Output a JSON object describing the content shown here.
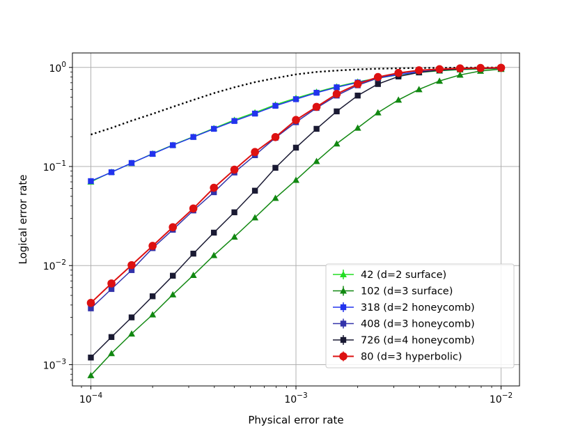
{
  "chart_data": {
    "type": "line",
    "xscale": "log",
    "yscale": "log",
    "xlim": [
      8.13e-05,
      0.0123
    ],
    "ylim": [
      0.00061,
      1.4
    ],
    "xlabel": "Physical error rate",
    "ylabel": "Logical error rate",
    "grid": true,
    "legend_position": "lower-right",
    "x_ticks": [
      {
        "value": 0.0001,
        "base": "10",
        "exp": "−4"
      },
      {
        "value": 0.001,
        "base": "10",
        "exp": "−3"
      },
      {
        "value": 0.01,
        "base": "10",
        "exp": "−2"
      }
    ],
    "y_ticks": [
      {
        "value": 0.001,
        "base": "10",
        "exp": "−3"
      },
      {
        "value": 0.01,
        "base": "10",
        "exp": "−2"
      },
      {
        "value": 0.1,
        "base": "10",
        "exp": "−1"
      },
      {
        "value": 1,
        "base": "10",
        "exp": "0"
      }
    ],
    "x": [
      0.0001,
      0.000126,
      0.000158,
      0.0002,
      0.000251,
      0.000316,
      0.000398,
      0.000501,
      0.000631,
      0.000794,
      0.001,
      0.00126,
      0.00158,
      0.002,
      0.00251,
      0.00316,
      0.00398,
      0.00501,
      0.00631,
      0.00794,
      0.01
    ],
    "reference_curve": {
      "name": "dotted reference",
      "color": "#000000",
      "style": "dotted",
      "values": [
        0.21,
        0.245,
        0.29,
        0.34,
        0.4,
        0.47,
        0.55,
        0.63,
        0.71,
        0.78,
        0.85,
        0.9,
        0.93,
        0.955,
        0.97,
        0.98,
        0.987,
        0.991,
        0.994,
        0.996,
        0.997
      ]
    },
    "series": [
      {
        "name": "42 (d=2 surface)",
        "color": "#22dd22",
        "marker": "triangle",
        "values": [
          0.07,
          0.088,
          0.108,
          0.135,
          0.165,
          0.2,
          0.243,
          0.295,
          0.35,
          0.42,
          0.49,
          0.565,
          0.64,
          0.715,
          0.78,
          0.84,
          0.89,
          0.925,
          0.95,
          0.965,
          0.975
        ]
      },
      {
        "name": "102 (d=3 surface)",
        "color": "#118811",
        "marker": "triangle",
        "values": [
          0.00078,
          0.0013,
          0.00205,
          0.0032,
          0.0051,
          0.008,
          0.0127,
          0.0195,
          0.0305,
          0.048,
          0.073,
          0.113,
          0.17,
          0.245,
          0.35,
          0.47,
          0.6,
          0.73,
          0.84,
          0.92,
          0.96
        ]
      },
      {
        "name": "318 (d=2 honeycomb)",
        "color": "#2233ee",
        "marker": "square",
        "values": [
          0.0712,
          0.0875,
          0.1085,
          0.134,
          0.164,
          0.1985,
          0.24,
          0.288,
          0.342,
          0.41,
          0.478,
          0.555,
          0.63,
          0.705,
          0.78,
          0.845,
          0.9,
          0.935,
          0.96,
          0.975,
          0.983
        ]
      },
      {
        "name": "408 (d=3 honeycomb)",
        "color": "#3333aa",
        "marker": "square",
        "values": [
          0.0037,
          0.0058,
          0.009,
          0.015,
          0.023,
          0.036,
          0.055,
          0.087,
          0.13,
          0.195,
          0.28,
          0.39,
          0.52,
          0.66,
          0.78,
          0.87,
          0.925,
          0.955,
          0.972,
          0.982,
          0.988
        ]
      },
      {
        "name": "726 (d=4 honeycomb)",
        "color": "#1a1a33",
        "marker": "square",
        "values": [
          0.00118,
          0.0019,
          0.003,
          0.0049,
          0.0079,
          0.0132,
          0.0215,
          0.0345,
          0.057,
          0.097,
          0.155,
          0.24,
          0.36,
          0.52,
          0.68,
          0.81,
          0.89,
          0.935,
          0.96,
          0.975,
          0.985
        ]
      },
      {
        "name": "80 (d=3 hyperbolic)",
        "color": "#dd1111",
        "marker": "circle",
        "values": [
          0.0042,
          0.0066,
          0.0101,
          0.0158,
          0.0244,
          0.0377,
          0.061,
          0.093,
          0.14,
          0.198,
          0.295,
          0.4,
          0.54,
          0.68,
          0.8,
          0.88,
          0.935,
          0.96,
          0.978,
          0.987,
          0.992
        ]
      }
    ]
  }
}
